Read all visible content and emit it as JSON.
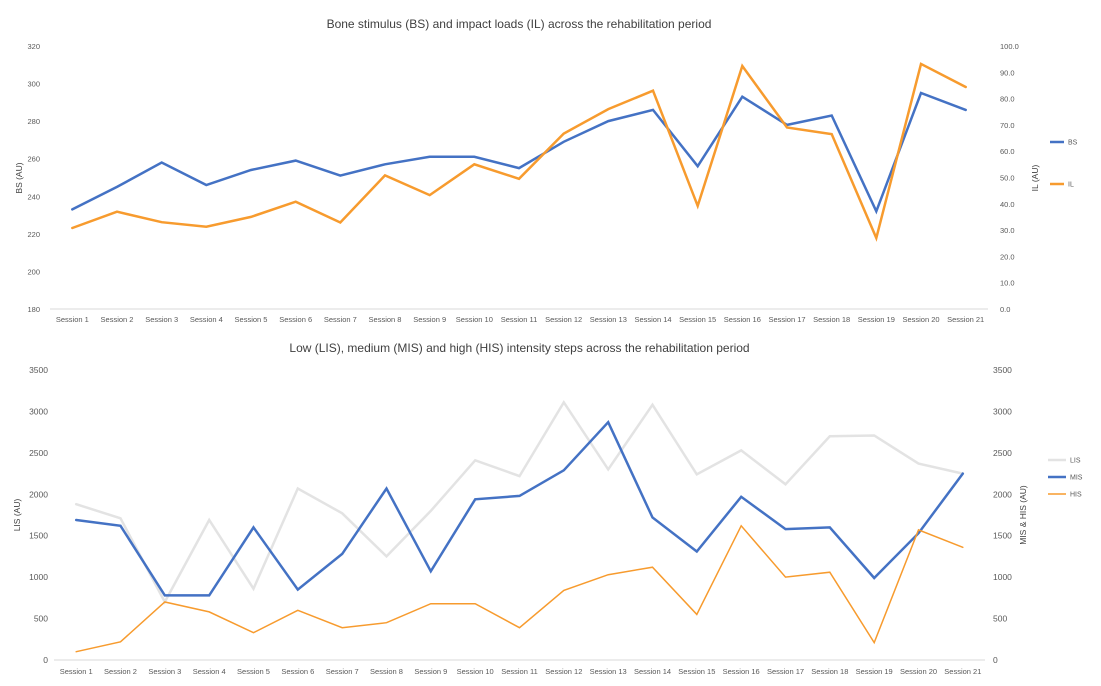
{
  "chart_data": [
    {
      "type": "line",
      "title": "Bone stimulus (BS) and impact loads (IL) across the rehabilitation period",
      "categories": [
        "Session 1",
        "Session 2",
        "Session 3",
        "Session 4",
        "Session 5",
        "Session 6",
        "Session 7",
        "Session 8",
        "Session 9",
        "Session 10",
        "Session 11",
        "Session 12",
        "Session 13",
        "Session 14",
        "Session 15",
        "Session 16",
        "Session 17",
        "Session 18",
        "Session 19",
        "Session 20",
        "Session 21"
      ],
      "ylabel": "BS (AU)",
      "y2label": "IL (AU)",
      "ylim": [
        180,
        320
      ],
      "y2lim": [
        0,
        100
      ],
      "yticks": [
        "180",
        "200",
        "220",
        "240",
        "260",
        "280",
        "300",
        "320"
      ],
      "y2ticks": [
        "0.0",
        "10.0",
        "20.0",
        "30.0",
        "40.0",
        "50.0",
        "60.0",
        "70.0",
        "80.0",
        "90.0",
        "100.0"
      ],
      "grid": false,
      "legend_position": "right",
      "series": [
        {
          "name": "BS",
          "axis": "left",
          "color": "#4472C4",
          "width": 2.5,
          "values": [
            233,
            245,
            258,
            246,
            254,
            259,
            251,
            257,
            261,
            261,
            255,
            269,
            280,
            286,
            256,
            293,
            278,
            283,
            232,
            295,
            286
          ]
        },
        {
          "name": "IL",
          "axis": "right",
          "color": "#F79B2E",
          "width": 2.5,
          "values": [
            30.8,
            37.0,
            33.0,
            31.3,
            35.0,
            40.8,
            32.9,
            50.8,
            43.3,
            55.0,
            49.5,
            66.7,
            76.0,
            83.0,
            39.2,
            92.4,
            69.0,
            66.5,
            27.0,
            93.2,
            84.4
          ]
        }
      ]
    },
    {
      "type": "line",
      "title": "Low (LIS), medium (MIS) and high (HIS) intensity steps across the rehabilitation period",
      "categories": [
        "Session 1",
        "Session 2",
        "Session 3",
        "Session 4",
        "Session 5",
        "Session 6",
        "Session 7",
        "Session 8",
        "Session 9",
        "Session 10",
        "Session 11",
        "Session 12",
        "Session 13",
        "Session 14",
        "Session 15",
        "Session 16",
        "Session 17",
        "Session 18",
        "Session 19",
        "Session 20",
        "Session 21"
      ],
      "ylabel": "LIS (AU)",
      "y2label": "MIS & HIS (AU)",
      "ylim": [
        0,
        3500
      ],
      "y2lim": [
        0,
        3500
      ],
      "yticks": [
        "0",
        "500",
        "1000",
        "1500",
        "2000",
        "2500",
        "3000",
        "3500"
      ],
      "y2ticks": [
        "0",
        "500",
        "1000",
        "1500",
        "2000",
        "2500",
        "3000",
        "3500"
      ],
      "grid": false,
      "legend_position": "right",
      "series": [
        {
          "name": "LIS",
          "axis": "left",
          "color": "#E3E3E3",
          "width": 2.5,
          "values": [
            1880,
            1710,
            700,
            1690,
            860,
            2070,
            1770,
            1250,
            1800,
            2410,
            2220,
            3110,
            2300,
            3080,
            2240,
            2530,
            2120,
            2700,
            2710,
            2370,
            2250
          ]
        },
        {
          "name": "MIS",
          "axis": "right",
          "color": "#4472C4",
          "width": 2.5,
          "values": [
            1690,
            1620,
            780,
            780,
            1600,
            850,
            1280,
            2070,
            1070,
            1940,
            1980,
            2290,
            2870,
            1720,
            1310,
            1970,
            1580,
            1600,
            990,
            1530,
            2250
          ]
        },
        {
          "name": "HIS",
          "axis": "right",
          "color": "#F79B2E",
          "width": 1.5,
          "values": [
            100,
            220,
            700,
            580,
            330,
            600,
            390,
            450,
            680,
            680,
            390,
            840,
            1030,
            1120,
            550,
            1620,
            1000,
            1060,
            210,
            1570,
            1360
          ]
        }
      ]
    }
  ]
}
